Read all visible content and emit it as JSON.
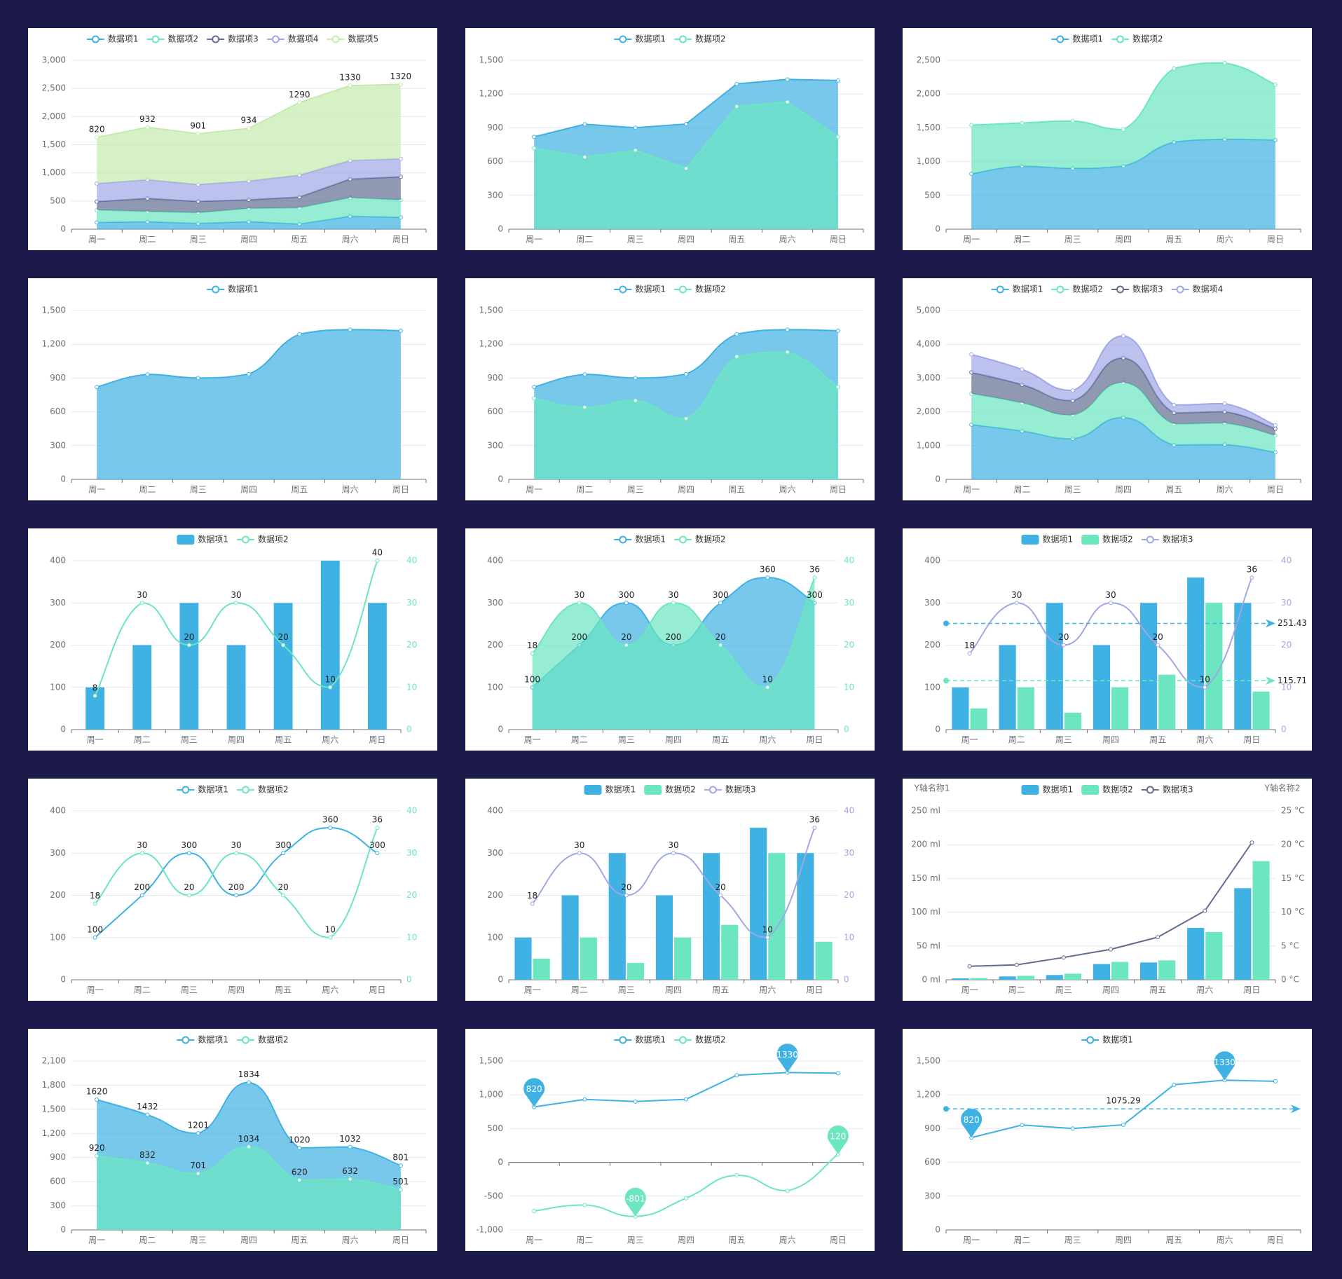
{
  "chart_data": [
    {
      "type": "area",
      "stack": true,
      "smooth": false,
      "grid": true,
      "categories": [
        "周一",
        "周二",
        "周三",
        "周四",
        "周五",
        "周六",
        "周日"
      ],
      "ylim": [
        0,
        3000
      ],
      "yticks": [
        0,
        500,
        {
          "value": 1000,
          "label": "1,000"
        },
        {
          "value": 1500,
          "label": "1,500"
        },
        {
          "value": 2000,
          "label": "2,000"
        },
        {
          "value": 2500,
          "label": "2,500"
        },
        {
          "value": 3000,
          "label": "3,000"
        }
      ],
      "series": [
        {
          "name": "数据项1",
          "color": "#3fb1e3",
          "values": [
            120,
            132,
            101,
            134,
            90,
            230,
            210
          ]
        },
        {
          "name": "数据项2",
          "color": "#6be6c1",
          "values": [
            220,
            182,
            191,
            234,
            290,
            330,
            310
          ]
        },
        {
          "name": "数据项3",
          "color": "#626c91",
          "values": [
            150,
            232,
            201,
            154,
            190,
            330,
            410
          ]
        },
        {
          "name": "数据项4",
          "color": "#a0a7e6",
          "values": [
            320,
            332,
            301,
            334,
            390,
            330,
            320
          ]
        },
        {
          "name": "数据项5",
          "color": "#c4ebad",
          "labels": true,
          "values": [
            820,
            932,
            901,
            934,
            1290,
            1330,
            1320
          ]
        }
      ]
    },
    {
      "type": "area",
      "smooth": false,
      "grid": true,
      "categories": [
        "周一",
        "周二",
        "周三",
        "周四",
        "周五",
        "周六",
        "周日"
      ],
      "ylim": [
        0,
        1500
      ],
      "yticks": [
        0,
        300,
        600,
        900,
        {
          "value": 1200,
          "label": "1,200"
        },
        {
          "value": 1500,
          "label": "1,500"
        }
      ],
      "series": [
        {
          "name": "数据项1",
          "color": "#3fb1e3",
          "values": [
            820,
            932,
            901,
            934,
            1290,
            1330,
            1320
          ]
        },
        {
          "name": "数据项2",
          "color": "#6be6c1",
          "values": [
            720,
            640,
            700,
            540,
            1090,
            1130,
            820
          ]
        }
      ]
    },
    {
      "type": "area",
      "stack": true,
      "smooth": true,
      "grid": true,
      "categories": [
        "周一",
        "周二",
        "周三",
        "周四",
        "周五",
        "周六",
        "周日"
      ],
      "ylim": [
        0,
        2500
      ],
      "yticks": [
        0,
        500,
        {
          "value": 1000,
          "label": "1,000"
        },
        {
          "value": 1500,
          "label": "1,500"
        },
        {
          "value": 2000,
          "label": "2,000"
        },
        {
          "value": 2500,
          "label": "2,500"
        }
      ],
      "series": [
        {
          "name": "数据项1",
          "color": "#3fb1e3",
          "values": [
            820,
            932,
            901,
            934,
            1290,
            1330,
            1320
          ]
        },
        {
          "name": "数据项2",
          "color": "#6be6c1",
          "values": [
            720,
            640,
            700,
            540,
            1090,
            1130,
            820
          ]
        }
      ]
    },
    {
      "type": "area",
      "smooth": true,
      "grid": true,
      "categories": [
        "周一",
        "周二",
        "周三",
        "周四",
        "周五",
        "周六",
        "周日"
      ],
      "ylim": [
        0,
        1500
      ],
      "yticks": [
        0,
        300,
        600,
        900,
        {
          "value": 1200,
          "label": "1,200"
        },
        {
          "value": 1500,
          "label": "1,500"
        }
      ],
      "series": [
        {
          "name": "数据项1",
          "color": "#3fb1e3",
          "values": [
            820,
            932,
            901,
            934,
            1290,
            1330,
            1320
          ]
        }
      ]
    },
    {
      "type": "area",
      "smooth": true,
      "grid": true,
      "categories": [
        "周一",
        "周二",
        "周三",
        "周四",
        "周五",
        "周六",
        "周日"
      ],
      "ylim": [
        0,
        1500
      ],
      "yticks": [
        0,
        300,
        600,
        900,
        {
          "value": 1200,
          "label": "1,200"
        },
        {
          "value": 1500,
          "label": "1,500"
        }
      ],
      "series": [
        {
          "name": "数据项1",
          "color": "#3fb1e3",
          "values": [
            820,
            932,
            901,
            934,
            1290,
            1330,
            1320
          ]
        },
        {
          "name": "数据项2",
          "color": "#6be6c1",
          "values": [
            720,
            640,
            700,
            540,
            1090,
            1130,
            820
          ]
        }
      ]
    },
    {
      "type": "area",
      "stack": true,
      "smooth": true,
      "grid": true,
      "categories": [
        "周一",
        "周二",
        "周三",
        "周四",
        "周五",
        "周六",
        "周日"
      ],
      "ylim": [
        0,
        5000
      ],
      "yticks": [
        0,
        {
          "value": 1000,
          "label": "1,000"
        },
        {
          "value": 2000,
          "label": "2,000"
        },
        {
          "value": 3000,
          "label": "3,000"
        },
        {
          "value": 4000,
          "label": "4,000"
        },
        {
          "value": 5000,
          "label": "5,000"
        }
      ],
      "series": [
        {
          "name": "数据项1",
          "color": "#3fb1e3",
          "values": [
            1620,
            1432,
            1201,
            1834,
            1020,
            1032,
            801
          ]
        },
        {
          "name": "数据项2",
          "color": "#6be6c1",
          "values": [
            920,
            832,
            701,
            1034,
            620,
            632,
            501
          ]
        },
        {
          "name": "数据项3",
          "color": "#626c91",
          "values": [
            630,
            540,
            430,
            730,
            330,
            340,
            200
          ]
        },
        {
          "name": "数据项4",
          "color": "#a0a7e6",
          "values": [
            530,
            450,
            300,
            650,
            230,
            240,
            100
          ]
        }
      ]
    },
    {
      "type": "bar",
      "grid": true,
      "categories": [
        "周一",
        "周二",
        "周三",
        "周四",
        "周五",
        "周六",
        "周日"
      ],
      "ylim": [
        0,
        400
      ],
      "yticks": [
        0,
        100,
        200,
        300,
        400
      ],
      "y2lim": [
        0,
        40
      ],
      "y2ticks": [
        0,
        10,
        20,
        30,
        40
      ],
      "y2color": "#6be6c1",
      "series": [
        {
          "name": "数据项1",
          "color": "#3fb1e3",
          "values": [
            100,
            200,
            300,
            200,
            300,
            400,
            300
          ]
        },
        {
          "name": "数据项2",
          "type": "line",
          "axis": "y2",
          "smooth": true,
          "labels": true,
          "color": "#6be6c1",
          "values": [
            8,
            30,
            20,
            30,
            20,
            10,
            40
          ]
        }
      ]
    },
    {
      "type": "area",
      "smooth": true,
      "grid": true,
      "categories": [
        "周一",
        "周二",
        "周三",
        "周四",
        "周五",
        "周六",
        "周日"
      ],
      "ylim": [
        0,
        400
      ],
      "yticks": [
        0,
        100,
        200,
        300,
        400
      ],
      "y2lim": [
        0,
        40
      ],
      "y2ticks": [
        0,
        10,
        20,
        30,
        40
      ],
      "y2color": "#6be6c1",
      "series": [
        {
          "name": "数据项1",
          "color": "#3fb1e3",
          "labels": true,
          "values": [
            100,
            200,
            300,
            200,
            300,
            360,
            300
          ]
        },
        {
          "name": "数据项2",
          "axis": "y2",
          "labels": true,
          "color": "#6be6c1",
          "values": [
            18,
            30,
            20,
            30,
            20,
            10,
            36
          ]
        }
      ]
    },
    {
      "type": "bar",
      "grid": true,
      "markline_label": "end",
      "categories": [
        "周一",
        "周二",
        "周三",
        "周四",
        "周五",
        "周六",
        "周日"
      ],
      "ylim": [
        0,
        400
      ],
      "yticks": [
        0,
        100,
        200,
        300,
        400
      ],
      "y2lim": [
        0,
        40
      ],
      "y2ticks": [
        0,
        10,
        20,
        30,
        40
      ],
      "y2color": "#a0a7e6",
      "series": [
        {
          "name": "数据项1",
          "color": "#3fb1e3",
          "markline": 251.43,
          "values": [
            100,
            200,
            300,
            200,
            300,
            360,
            300
          ]
        },
        {
          "name": "数据项2",
          "color": "#6be6c1",
          "markline": 115.71,
          "values": [
            50,
            100,
            40,
            100,
            130,
            300,
            90
          ]
        },
        {
          "name": "数据项3",
          "type": "line",
          "axis": "y2",
          "smooth": true,
          "labels": true,
          "color": "#a0a7e6",
          "values": [
            18,
            30,
            20,
            30,
            20,
            10,
            36
          ]
        }
      ]
    },
    {
      "type": "line",
      "smooth": true,
      "grid": true,
      "categories": [
        "周一",
        "周二",
        "周三",
        "周四",
        "周五",
        "周六",
        "周日"
      ],
      "ylim": [
        0,
        400
      ],
      "yticks": [
        0,
        100,
        200,
        300,
        400
      ],
      "y2lim": [
        0,
        40
      ],
      "y2ticks": [
        0,
        10,
        20,
        30,
        40
      ],
      "y2color": "#6be6c1",
      "series": [
        {
          "name": "数据项1",
          "color": "#3fb1e3",
          "labels": true,
          "values": [
            100,
            200,
            300,
            200,
            300,
            360,
            300
          ]
        },
        {
          "name": "数据项2",
          "axis": "y2",
          "labels": true,
          "color": "#6be6c1",
          "values": [
            18,
            30,
            20,
            30,
            20,
            10,
            36
          ]
        }
      ]
    },
    {
      "type": "bar",
      "grid": true,
      "categories": [
        "周一",
        "周二",
        "周三",
        "周四",
        "周五",
        "周六",
        "周日"
      ],
      "ylim": [
        0,
        400
      ],
      "yticks": [
        0,
        100,
        200,
        300,
        400
      ],
      "y2lim": [
        0,
        40
      ],
      "y2ticks": [
        0,
        10,
        20,
        30,
        40
      ],
      "y2color": "#a0a7e6",
      "series": [
        {
          "name": "数据项1",
          "color": "#3fb1e3",
          "values": [
            100,
            200,
            300,
            200,
            300,
            360,
            300
          ]
        },
        {
          "name": "数据项2",
          "color": "#6be6c1",
          "values": [
            50,
            100,
            40,
            100,
            130,
            300,
            90
          ]
        },
        {
          "name": "数据项3",
          "type": "line",
          "axis": "y2",
          "smooth": true,
          "labels": true,
          "color": "#a0a7e6",
          "values": [
            18,
            30,
            20,
            30,
            20,
            10,
            36
          ]
        }
      ]
    },
    {
      "type": "bar",
      "grid": true,
      "y_name": "Y轴名称1",
      "y2_name": "Y轴名称2",
      "categories": [
        "周一",
        "周二",
        "周三",
        "周四",
        "周五",
        "周六",
        "周日"
      ],
      "ylim": [
        0,
        250
      ],
      "yticks": [
        {
          "value": 0,
          "label": "0 ml"
        },
        {
          "value": 50,
          "label": "50 ml"
        },
        {
          "value": 100,
          "label": "100 ml"
        },
        {
          "value": 150,
          "label": "150 ml"
        },
        {
          "value": 200,
          "label": "200 ml"
        },
        {
          "value": 250,
          "label": "250 ml"
        }
      ],
      "y2lim": [
        0,
        25
      ],
      "y2ticks": [
        {
          "value": 0,
          "label": "0 °C"
        },
        {
          "value": 5,
          "label": "5 °C"
        },
        {
          "value": 10,
          "label": "10 °C"
        },
        {
          "value": 15,
          "label": "15 °C"
        },
        {
          "value": 20,
          "label": "20 °C"
        },
        {
          "value": 25,
          "label": "25 °C"
        }
      ],
      "y2color": "#6e7079",
      "series": [
        {
          "name": "数据项1",
          "color": "#3fb1e3",
          "values": [
            2.0,
            4.9,
            7.0,
            23.2,
            25.6,
            76.7,
            135.6
          ]
        },
        {
          "name": "数据项2",
          "color": "#6be6c1",
          "values": [
            2.6,
            5.9,
            9.0,
            26.4,
            28.7,
            70.7,
            175.6
          ]
        },
        {
          "name": "数据项3",
          "type": "line",
          "axis": "y2",
          "smooth": false,
          "color": "#626c91",
          "values": [
            2.0,
            2.2,
            3.3,
            4.5,
            6.3,
            10.2,
            20.3
          ]
        }
      ]
    },
    {
      "type": "area",
      "smooth": true,
      "grid": true,
      "categories": [
        "周一",
        "周二",
        "周三",
        "周四",
        "周五",
        "周六",
        "周日"
      ],
      "ylim": [
        0,
        2100
      ],
      "yticks": [
        0,
        300,
        600,
        900,
        {
          "value": 1200,
          "label": "1,200"
        },
        {
          "value": 1500,
          "label": "1,500"
        },
        {
          "value": 1800,
          "label": "1,800"
        },
        {
          "value": 2100,
          "label": "2,100"
        }
      ],
      "series": [
        {
          "name": "数据项1",
          "color": "#3fb1e3",
          "labels": true,
          "values": [
            1620,
            1432,
            1201,
            1834,
            1020,
            1032,
            801
          ]
        },
        {
          "name": "数据项2",
          "color": "#6be6c1",
          "labels": true,
          "values": [
            920,
            832,
            701,
            1034,
            620,
            632,
            501
          ]
        }
      ]
    },
    {
      "type": "line",
      "grid": true,
      "categories": [
        "周一",
        "周二",
        "周三",
        "周四",
        "周五",
        "周六",
        "周日"
      ],
      "ylim": [
        -1000,
        1500
      ],
      "yticks": [
        {
          "value": -1000,
          "label": "-1,000"
        },
        -500,
        0,
        500,
        {
          "value": 1000,
          "label": "1,000"
        },
        {
          "value": 1500,
          "label": "1,500"
        }
      ],
      "series": [
        {
          "name": "数据项1",
          "color": "#3fb1e3",
          "smooth": false,
          "markpoint": true,
          "values": [
            820,
            932,
            901,
            934,
            1290,
            1330,
            1320
          ]
        },
        {
          "name": "数据项2",
          "color": "#6be6c1",
          "smooth": true,
          "markpoint": true,
          "values": [
            -720,
            -630,
            -801,
            -530,
            -190,
            -420,
            120
          ]
        }
      ]
    },
    {
      "type": "line",
      "grid": true,
      "smooth": false,
      "markline_label": "middle",
      "categories": [
        "周一",
        "周二",
        "周三",
        "周四",
        "周五",
        "周六",
        "周日"
      ],
      "ylim": [
        0,
        1500
      ],
      "yticks": [
        0,
        300,
        600,
        900,
        {
          "value": 1200,
          "label": "1,200"
        },
        {
          "value": 1500,
          "label": "1,500"
        }
      ],
      "series": [
        {
          "name": "数据项1",
          "color": "#3fb1e3",
          "markpoint": true,
          "markline": 1075.29,
          "values": [
            820,
            932,
            901,
            934,
            1290,
            1330,
            1320
          ]
        }
      ]
    }
  ]
}
